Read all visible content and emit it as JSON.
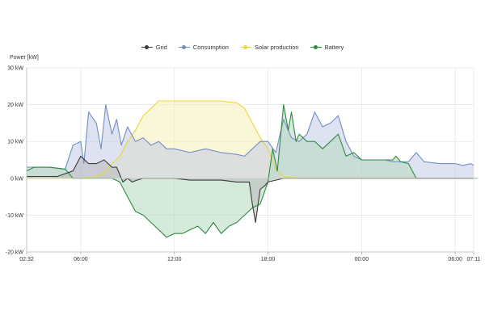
{
  "chart_data": {
    "type": "area",
    "title": "",
    "ylabel": "Power [kW]",
    "xlabel": "",
    "ylim": [
      -20,
      30
    ],
    "xlim": [
      2.533,
      31.183
    ],
    "y_ticks": [
      -20,
      -10,
      0,
      10,
      20,
      30
    ],
    "y_tick_labels": [
      "-20 kW",
      "-10 kW",
      "0 kW",
      "10 kW",
      "20 kW",
      "30 kW"
    ],
    "x_ticks": [
      2.533,
      6,
      12,
      18,
      24,
      30,
      31.183
    ],
    "x_tick_labels": [
      "02:32",
      "06:00",
      "12:00",
      "18:00",
      "00:00",
      "06:00",
      "07:11"
    ],
    "grid": true,
    "legend_position": "top-center",
    "series": [
      {
        "name": "Grid",
        "color": "#3a3a3a",
        "fill": "#b8b8bc",
        "x": [
          2.53,
          4.5,
          5.5,
          6,
          6.5,
          7,
          7.5,
          8,
          8.3,
          8.7,
          9,
          9.3,
          9.6,
          10,
          11,
          12,
          13,
          14,
          15,
          16,
          16.8,
          17,
          17.2,
          17.5,
          17.8,
          18,
          18.5,
          19,
          19.5,
          20,
          21,
          22,
          23,
          24,
          25,
          26,
          27,
          27.5,
          28,
          29,
          30,
          31.18
        ],
        "y": [
          0.5,
          0.5,
          2,
          6,
          4,
          4,
          5,
          3,
          3,
          -1,
          0,
          -1,
          -0.5,
          0,
          0,
          0,
          -0.5,
          -0.5,
          -0.5,
          -1,
          -1,
          -7,
          -12,
          -3,
          -2,
          -1,
          -0.5,
          0,
          0,
          0,
          0,
          0,
          0,
          0,
          0,
          0,
          0,
          0,
          0,
          0,
          0,
          0
        ]
      },
      {
        "name": "Consumption",
        "color": "#6f8fc4",
        "fill": "#c5cce6",
        "x": [
          2.53,
          3,
          4,
          5,
          5.5,
          6,
          6.2,
          6.5,
          7,
          7.3,
          7.6,
          8,
          8.3,
          8.6,
          9,
          9.5,
          10,
          10.5,
          11,
          11.5,
          12,
          13,
          14,
          15,
          16,
          16.5,
          17,
          17.5,
          18,
          18.5,
          19,
          19.5,
          20,
          20.5,
          21,
          21.5,
          22,
          22.5,
          23,
          23.5,
          24,
          24.5,
          25,
          25.5,
          26,
          26.5,
          27,
          27.5,
          28,
          29,
          30,
          30.5,
          31,
          31.18
        ],
        "y": [
          3,
          3,
          3,
          2.5,
          9,
          10,
          4,
          18,
          15,
          8,
          20,
          12,
          16,
          9,
          14,
          10,
          11,
          9,
          10,
          8,
          8,
          7,
          8,
          7,
          6.5,
          6,
          8,
          10,
          10,
          7,
          16,
          11,
          10,
          12,
          18,
          14,
          15,
          17,
          10,
          6,
          5,
          5,
          5,
          5,
          4.5,
          4.5,
          4.5,
          7,
          4.5,
          4,
          4,
          3.5,
          4,
          3.5
        ]
      },
      {
        "name": "Solar production",
        "color": "#ead73a",
        "fill": "#f5f0b8",
        "x": [
          2.53,
          6,
          7,
          7.5,
          8,
          8.5,
          9,
          9.5,
          10,
          10.5,
          11,
          11.5,
          12,
          13,
          14,
          15,
          16,
          16.5,
          17,
          17.5,
          18,
          18.5,
          19,
          19.5,
          20,
          21,
          22,
          23,
          24,
          25,
          26,
          27,
          28,
          29,
          30,
          31.18
        ],
        "y": [
          0,
          0,
          0.5,
          1.5,
          4,
          6,
          10,
          13,
          17,
          19,
          21,
          21,
          21,
          21,
          21,
          21,
          20.5,
          19,
          15,
          11,
          8,
          2.5,
          0.5,
          0.3,
          0,
          0,
          0,
          0,
          0,
          0,
          0,
          0,
          0,
          0,
          0,
          0
        ]
      },
      {
        "name": "Battery",
        "color": "#2e8b3e",
        "fill": "#b5d9c0",
        "x": [
          2.53,
          3,
          4,
          5,
          5.5,
          6,
          7,
          8,
          8.5,
          9,
          9.5,
          10,
          10.5,
          11,
          11.5,
          12,
          12.5,
          13,
          13.5,
          14,
          14.5,
          15,
          15.5,
          16,
          16.5,
          17,
          17.5,
          18,
          18.3,
          18.6,
          19,
          19.3,
          19.5,
          19.8,
          20,
          20.5,
          21,
          21.5,
          22,
          22.5,
          23,
          23.5,
          24,
          25,
          26,
          26.2,
          26.5,
          27,
          27.5,
          28,
          30,
          31.18
        ],
        "y": [
          2,
          3,
          3,
          2.5,
          0,
          0,
          0,
          0,
          -1,
          -5,
          -9,
          -10,
          -12,
          -14,
          -16,
          -15,
          -15,
          -14,
          -13,
          -15,
          -12,
          -15,
          -13,
          -12,
          -10,
          -8,
          -7,
          -1,
          8,
          2,
          20,
          13,
          18,
          10,
          12,
          10,
          10,
          8,
          10,
          12,
          6,
          7,
          5,
          5,
          5,
          6,
          4.5,
          4,
          0,
          0,
          0,
          0
        ]
      }
    ]
  }
}
